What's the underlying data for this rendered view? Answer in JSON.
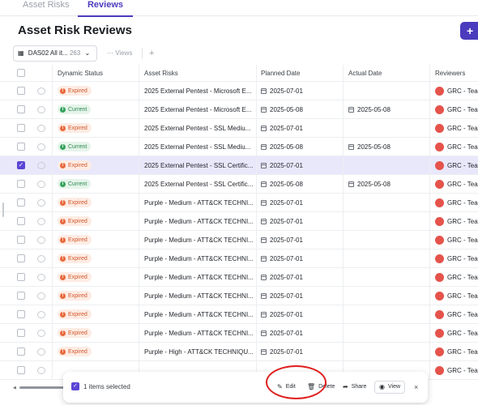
{
  "tabs": [
    "Asset Risks",
    "Reviews"
  ],
  "page_title": "Asset Risk Reviews",
  "add_button": "+",
  "toolbar": {
    "view_name": "DAS02 All it...",
    "view_count": "263",
    "views_label": "Views",
    "add_label": "+"
  },
  "columns": [
    "Dynamic Status",
    "Asset Risks",
    "Planned Date",
    "Actual Date",
    "Reviewers"
  ],
  "rows": [
    {
      "status": "Expired",
      "asset": "2025 External Pentest - Microsoft E...",
      "planned": "2025-07-01",
      "actual": "",
      "reviewer": "GRC - Tea",
      "selected": false
    },
    {
      "status": "Current",
      "asset": "2025 External Pentest - Microsoft E...",
      "planned": "2025-05-08",
      "actual": "2025-05-08",
      "reviewer": "GRC - Tea",
      "selected": false
    },
    {
      "status": "Expired",
      "asset": "2025 External Pentest - SSL Mediu...",
      "planned": "2025-07-01",
      "actual": "",
      "reviewer": "GRC - Tea",
      "selected": false
    },
    {
      "status": "Current",
      "asset": "2025 External Pentest - SSL Mediu...",
      "planned": "2025-05-08",
      "actual": "2025-05-08",
      "reviewer": "GRC - Tea",
      "selected": false
    },
    {
      "status": "Expired",
      "asset": "2025 External Pentest - SSL Certific...",
      "planned": "2025-07-01",
      "actual": "",
      "reviewer": "GRC - Tea",
      "selected": true
    },
    {
      "status": "Current",
      "asset": "2025 External Pentest - SSL Certific...",
      "planned": "2025-05-08",
      "actual": "2025-05-08",
      "reviewer": "GRC - Tea",
      "selected": false
    },
    {
      "status": "Expired",
      "asset": "Purple - Medium - ATT&CK TECHNI...",
      "planned": "2025-07-01",
      "actual": "",
      "reviewer": "GRC - Tea",
      "selected": false
    },
    {
      "status": "Expired",
      "asset": "Purple - Medium - ATT&CK TECHNI...",
      "planned": "2025-07-01",
      "actual": "",
      "reviewer": "GRC - Tea",
      "selected": false
    },
    {
      "status": "Expired",
      "asset": "Purple - Medium - ATT&CK TECHNI...",
      "planned": "2025-07-01",
      "actual": "",
      "reviewer": "GRC - Tea",
      "selected": false
    },
    {
      "status": "Expired",
      "asset": "Purple - Medium - ATT&CK TECHNI...",
      "planned": "2025-07-01",
      "actual": "",
      "reviewer": "GRC - Tea",
      "selected": false
    },
    {
      "status": "Expired",
      "asset": "Purple - Medium - ATT&CK TECHNI...",
      "planned": "2025-07-01",
      "actual": "",
      "reviewer": "GRC - Tea",
      "selected": false
    },
    {
      "status": "Expired",
      "asset": "Purple - Medium - ATT&CK TECHNI...",
      "planned": "2025-07-01",
      "actual": "",
      "reviewer": "GRC - Tea",
      "selected": false
    },
    {
      "status": "Expired",
      "asset": "Purple - Medium - ATT&CK TECHNI...",
      "planned": "2025-07-01",
      "actual": "",
      "reviewer": "GRC - Tea",
      "selected": false
    },
    {
      "status": "Expired",
      "asset": "Purple - Medium - ATT&CK TECHNI...",
      "planned": "2025-07-01",
      "actual": "",
      "reviewer": "GRC - Tea",
      "selected": false
    },
    {
      "status": "Expired",
      "asset": "Purple - High - ATT&CK TECHNIQU...",
      "planned": "2025-07-01",
      "actual": "",
      "reviewer": "GRC - Tea",
      "selected": false
    },
    {
      "status": "",
      "asset": "",
      "planned": "",
      "actual": "",
      "reviewer": "GRC - Tea",
      "selected": false
    }
  ],
  "action_bar": {
    "selected_text": "1 items selected",
    "edit": "Edit",
    "delete": "Delete",
    "share": "Share",
    "view": "View",
    "close": "×"
  },
  "colors": {
    "accent": "#4b3bbd",
    "expired": "#d4582b",
    "current": "#2d8a4e",
    "annotation": "#e02020"
  },
  "icons": {
    "table_view": "grid-icon",
    "dropdown": "chevron-down-icon",
    "calendar": "calendar-icon",
    "comment": "comment-icon",
    "reviewer": "user-avatar-icon",
    "edit": "pencil-icon",
    "delete": "trash-icon",
    "share": "share-arrow-icon",
    "view": "eye-icon"
  }
}
